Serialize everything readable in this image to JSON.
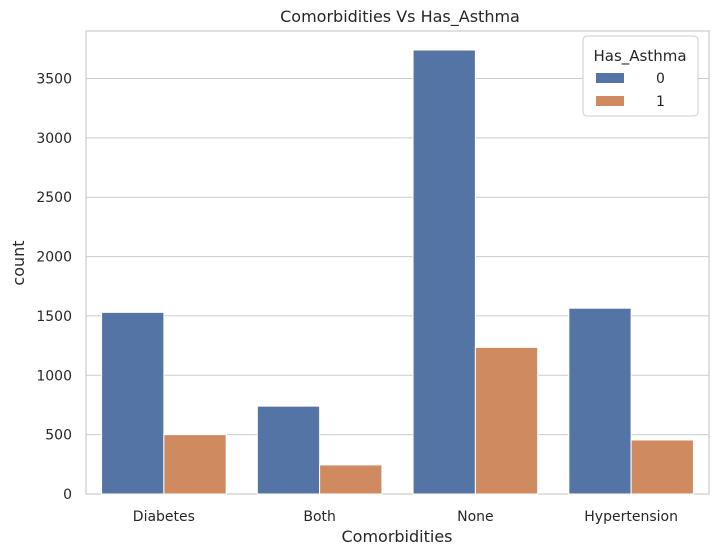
{
  "chart_data": {
    "type": "bar",
    "title": "Comorbidities Vs Has_Asthma",
    "xlabel": "Comorbidities",
    "ylabel": "count",
    "categories": [
      "Diabetes",
      "Both",
      "None",
      "Hypertension"
    ],
    "series": [
      {
        "name": "0",
        "values": [
          1530,
          740,
          3740,
          1565
        ],
        "color": "#5574a6"
      },
      {
        "name": "1",
        "values": [
          500,
          245,
          1235,
          455
        ],
        "color": "#d08a5f"
      }
    ],
    "ylim": [
      0,
      3900
    ],
    "yticks": [
      0,
      500,
      1000,
      1500,
      2000,
      2500,
      3000,
      3500
    ],
    "grid": true,
    "legend": {
      "title": "Has_Asthma",
      "placement": "top-right"
    }
  }
}
